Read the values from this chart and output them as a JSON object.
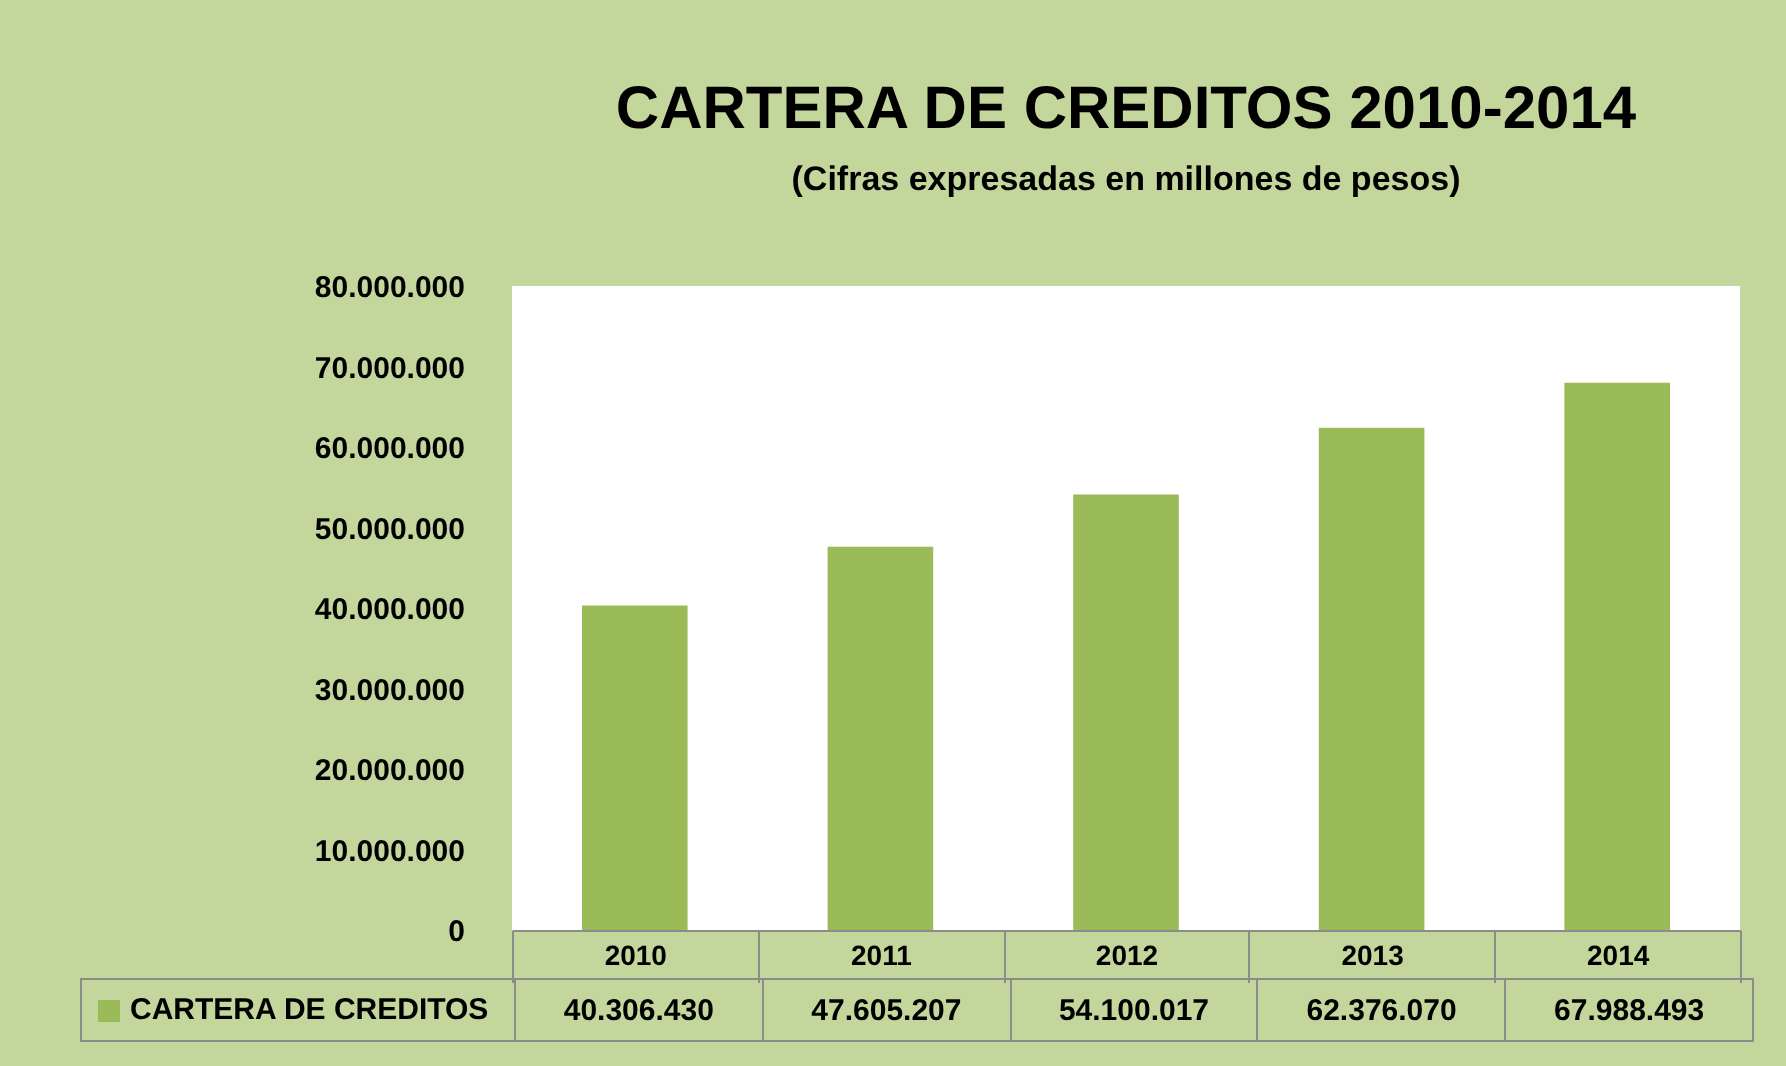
{
  "chart_data": {
    "type": "bar",
    "title": "CARTERA DE CREDITOS 2010-2014",
    "subtitle": "(Cifras expresadas en millones de pesos)",
    "categories": [
      "2010",
      "2011",
      "2012",
      "2013",
      "2014"
    ],
    "series": [
      {
        "name": "CARTERA DE CREDITOS",
        "color": "#9bbb59",
        "values": [
          40306430,
          47605207,
          54100017,
          62376070,
          67988493
        ],
        "value_labels": [
          "40.306.430",
          "47.605.207",
          "54.100.017",
          "62.376.070",
          "67.988.493"
        ]
      }
    ],
    "ylim": [
      0,
      80000000
    ],
    "yticks": [
      {
        "value": 0,
        "label": "0"
      },
      {
        "value": 10000000,
        "label": "10.000.000"
      },
      {
        "value": 20000000,
        "label": "20.000.000"
      },
      {
        "value": 30000000,
        "label": "30.000.000"
      },
      {
        "value": 40000000,
        "label": "40.000.000"
      },
      {
        "value": 50000000,
        "label": "50.000.000"
      },
      {
        "value": 60000000,
        "label": "60.000.000"
      },
      {
        "value": 70000000,
        "label": "70.000.000"
      },
      {
        "value": 80000000,
        "label": "80.000.000"
      }
    ],
    "grid": false
  }
}
